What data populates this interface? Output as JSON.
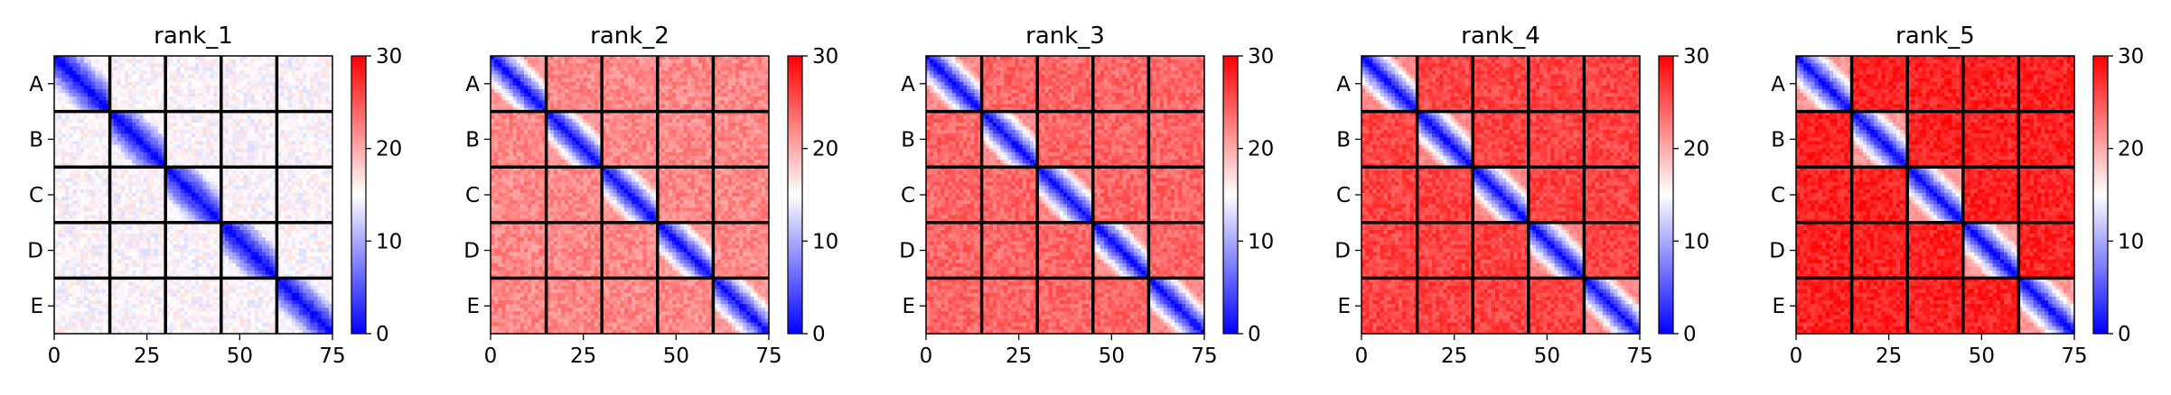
{
  "chart_data": {
    "type": "heatmap",
    "colormap": {
      "name": "bwr",
      "low": "#0000ff",
      "mid": "#ffffff",
      "high": "#ff0000"
    },
    "chain_labels": [
      "A",
      "B",
      "C",
      "D",
      "E"
    ],
    "chain_size": 15,
    "x_ticks": [
      0,
      25,
      50,
      75
    ],
    "xlim": [
      0,
      75
    ],
    "colorbar": {
      "range": [
        0,
        30
      ],
      "ticks": [
        0,
        10,
        20,
        30
      ]
    },
    "boundary_color": "#000000",
    "panels": [
      {
        "title": "rank_1",
        "intra_far": 15,
        "inter_mean": 15
      },
      {
        "title": "rank_2",
        "intra_far": 21,
        "inter_mean": 22
      },
      {
        "title": "rank_3",
        "intra_far": 22,
        "inter_mean": 24
      },
      {
        "title": "rank_4",
        "intra_far": 22,
        "inter_mean": 26
      },
      {
        "title": "rank_5",
        "intra_far": 21,
        "inter_mean": 28
      }
    ]
  }
}
